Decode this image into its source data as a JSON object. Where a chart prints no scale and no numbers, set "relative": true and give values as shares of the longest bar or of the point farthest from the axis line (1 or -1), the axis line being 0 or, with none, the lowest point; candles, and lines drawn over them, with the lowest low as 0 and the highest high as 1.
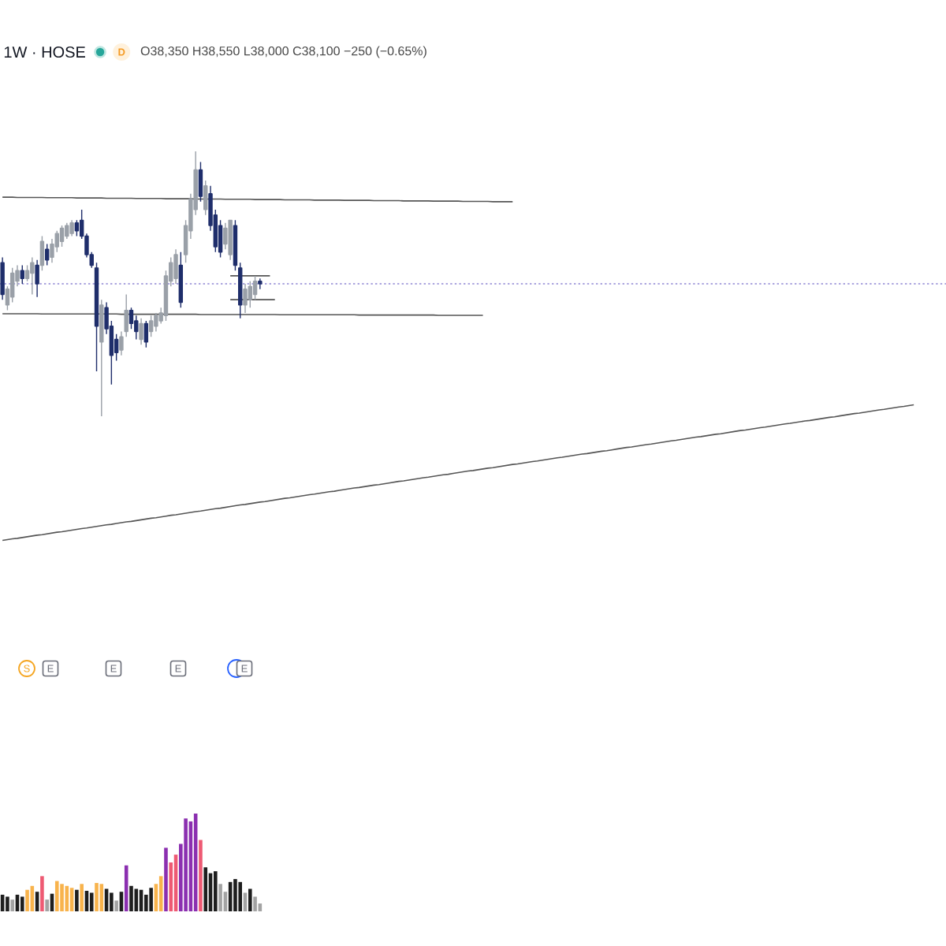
{
  "chart_data": [
    {
      "type": "candlestick",
      "title": "1W · HOSE",
      "relative": true,
      "annotations": [
        "D",
        "O38,350 H38,550 L38,000 C38,100 −250 (−0.65%)",
        "S",
        "E",
        "E",
        "E",
        "E"
      ],
      "categories": [
        null,
        null,
        null,
        null,
        null,
        null,
        null,
        null,
        null,
        null,
        null,
        null,
        null,
        null,
        null,
        null,
        null,
        null,
        null,
        null,
        null,
        null,
        null,
        null,
        null,
        null,
        null,
        null,
        null,
        null,
        null,
        null,
        null,
        null,
        null,
        null,
        null,
        null,
        null,
        null,
        null,
        null,
        null,
        null,
        null,
        null,
        null,
        null,
        null,
        null,
        null,
        null,
        null,
        null,
        null,
        null,
        null,
        null,
        null,
        null,
        null,
        null,
        null,
        null,
        null,
        null,
        null,
        null,
        null,
        null,
        null,
        null,
        null,
        null,
        null,
        null,
        null,
        null,
        null,
        null,
        null,
        null,
        null,
        null,
        null,
        null,
        null,
        null,
        null,
        null,
        null,
        null,
        null,
        null,
        null,
        null,
        null,
        null,
        null,
        null,
        null,
        null,
        null,
        null,
        null,
        null,
        null,
        null,
        null,
        null,
        null,
        null,
        null,
        null,
        null,
        null,
        null,
        null,
        null,
        null,
        null,
        null,
        null,
        null,
        null,
        null,
        null,
        null,
        null,
        null,
        null,
        null,
        null,
        null,
        null,
        null,
        null,
        null,
        null,
        null,
        null,
        null,
        null,
        null,
        null,
        null,
        null,
        null,
        null,
        null,
        null,
        null,
        null,
        null,
        null,
        null,
        null,
        null,
        null,
        null,
        null,
        null,
        null,
        null,
        null,
        null,
        null,
        null,
        null,
        null,
        null,
        null,
        null,
        null,
        null,
        null,
        null,
        null,
        null,
        null,
        null,
        null,
        null,
        null,
        null,
        null,
        null,
        null,
        null,
        null,
        null
      ],
      "ohlc": [
        [
          0.58,
          0.6,
          0.44,
          0.46
        ],
        [
          0.42,
          0.49,
          0.4,
          0.48
        ],
        [
          0.45,
          0.56,
          0.43,
          0.54
        ],
        [
          0.51,
          0.57,
          0.49,
          0.55
        ],
        [
          0.55,
          0.57,
          0.5,
          0.52
        ],
        [
          0.52,
          0.57,
          0.51,
          0.55
        ],
        [
          0.54,
          0.6,
          0.46,
          0.58
        ],
        [
          0.57,
          0.59,
          0.45,
          0.5
        ],
        [
          0.57,
          0.68,
          0.55,
          0.66
        ],
        [
          0.63,
          0.65,
          0.57,
          0.59
        ],
        [
          0.6,
          0.67,
          0.58,
          0.65
        ],
        [
          0.64,
          0.7,
          0.62,
          0.69
        ],
        [
          0.66,
          0.72,
          0.64,
          0.71
        ],
        [
          0.68,
          0.73,
          0.67,
          0.72
        ],
        [
          0.69,
          0.74,
          0.68,
          0.73
        ],
        [
          0.73,
          0.74,
          0.68,
          0.7
        ],
        [
          0.74,
          0.78,
          0.67,
          0.68
        ],
        [
          0.68,
          0.69,
          0.6,
          0.61
        ],
        [
          0.61,
          0.62,
          0.56,
          0.57
        ],
        [
          0.56,
          0.58,
          0.17,
          0.34
        ],
        [
          0.28,
          0.44,
          0,
          0.42
        ],
        [
          0.41,
          0.43,
          0.31,
          0.33
        ],
        [
          0.34,
          0.36,
          0.12,
          0.23
        ],
        [
          0.29,
          0.31,
          0.21,
          0.24
        ],
        [
          0.25,
          0.32,
          0.23,
          0.3
        ],
        [
          0.32,
          0.46,
          0.3,
          0.4
        ],
        [
          0.4,
          0.41,
          0.33,
          0.35
        ],
        [
          0.36,
          0.38,
          0.29,
          0.32
        ],
        [
          0.29,
          0.37,
          0.27,
          0.35
        ],
        [
          0.35,
          0.36,
          0.26,
          0.28
        ],
        [
          0.32,
          0.38,
          0.3,
          0.36
        ],
        [
          0.34,
          0.39,
          0.32,
          0.38
        ],
        [
          0.36,
          0.41,
          0.35,
          0.39
        ],
        [
          0.38,
          0.55,
          0.36,
          0.53
        ],
        [
          0.51,
          0.6,
          0.49,
          0.58
        ],
        [
          0.52,
          0.63,
          0.5,
          0.61
        ],
        [
          0.57,
          0.62,
          0.41,
          0.43
        ],
        [
          0.61,
          0.74,
          0.58,
          0.72
        ],
        [
          0.7,
          0.84,
          0.67,
          0.82
        ],
        [
          0.78,
          1,
          0.76,
          0.93
        ],
        [
          0.93,
          0.96,
          0.81,
          0.83
        ],
        [
          0.78,
          0.89,
          0.76,
          0.87
        ],
        [
          0.84,
          0.87,
          0.7,
          0.72
        ],
        [
          0.76,
          0.78,
          0.62,
          0.64
        ],
        [
          0.72,
          0.74,
          0.6,
          0.62
        ],
        [
          0.65,
          0.73,
          0.63,
          0.71
        ],
        [
          0.61,
          0.74,
          0.59,
          0.74
        ],
        [
          0.72,
          0.74,
          0.55,
          0.57
        ],
        [
          0.56,
          0.58,
          0.37,
          0.42
        ],
        [
          0.42,
          0.5,
          0.39,
          0.48
        ],
        [
          0.44,
          0.51,
          0.41,
          0.49
        ],
        [
          0.46,
          0.53,
          0.44,
          0.51
        ],
        [
          0.51,
          0.52,
          0.48,
          0.5
        ],
        null,
        null,
        null,
        null,
        null,
        null,
        null,
        null,
        null,
        null,
        null,
        null,
        null,
        null,
        null,
        null,
        null,
        null,
        null,
        null,
        null,
        null,
        null,
        null,
        null,
        null,
        null,
        null,
        null,
        null,
        null,
        null,
        null,
        null,
        null,
        null,
        null,
        null,
        null,
        null,
        null,
        null,
        null,
        null,
        null,
        null,
        null,
        null,
        null,
        null,
        null,
        null,
        null,
        null,
        null,
        null,
        null,
        null,
        null,
        null,
        null,
        null,
        null,
        null,
        null,
        null,
        null,
        null,
        null,
        null,
        null,
        null,
        null,
        null,
        null,
        null,
        null,
        null,
        null,
        null,
        null,
        null,
        null,
        null,
        null,
        null,
        null,
        null,
        null,
        null,
        null,
        null,
        null,
        null,
        null,
        null,
        null,
        null,
        null,
        null,
        null,
        null,
        null,
        null,
        null,
        null,
        null,
        null,
        null,
        null,
        null,
        null,
        null,
        null,
        null,
        null,
        null,
        null,
        null,
        null,
        null,
        null,
        null,
        null,
        null,
        null,
        null,
        null,
        null,
        null,
        null,
        null,
        null,
        null,
        null,
        null,
        null,
        null
      ],
      "colors": [
        "#1f2e6b",
        "#9aa0a8",
        "#9aa0a8",
        "#9aa0a8",
        "#1f2e6b",
        "#9aa0a8",
        "#9aa0a8",
        "#1f2e6b",
        "#9aa0a8",
        "#1f2e6b",
        "#9aa0a8",
        "#9aa0a8",
        "#9aa0a8",
        "#9aa0a8",
        "#9aa0a8",
        "#1f2e6b",
        "#1f2e6b",
        "#1f2e6b",
        "#1f2e6b",
        "#1f2e6b",
        "#9aa0a8",
        "#1f2e6b",
        "#1f2e6b",
        "#1f2e6b",
        "#9aa0a8",
        "#9aa0a8",
        "#1f2e6b",
        "#1f2e6b",
        "#9aa0a8",
        "#1f2e6b",
        "#9aa0a8",
        "#9aa0a8",
        "#9aa0a8",
        "#9aa0a8",
        "#9aa0a8",
        "#9aa0a8",
        "#1f2e6b",
        "#9aa0a8",
        "#9aa0a8",
        "#9aa0a8",
        "#1f2e6b",
        "#9aa0a8",
        "#1f2e6b",
        "#1f2e6b",
        "#1f2e6b",
        "#9aa0a8",
        "#9aa0a8",
        "#1f2e6b",
        "#1f2e6b",
        "#9aa0a8",
        "#9aa0a8",
        "#9aa0a8",
        "#1f2e6b",
        null,
        null,
        null,
        null,
        null,
        null,
        null,
        null,
        null,
        null,
        null,
        null,
        null,
        null,
        null,
        null,
        null,
        null,
        null,
        null,
        null,
        null,
        null,
        null,
        null,
        null,
        null,
        null,
        null,
        null,
        null,
        null,
        null,
        null,
        null,
        null,
        null,
        null,
        null,
        null,
        null,
        null,
        null,
        null,
        null,
        null,
        null,
        null,
        null,
        null,
        null,
        null,
        null,
        null,
        null,
        null,
        null,
        null,
        null,
        null,
        null,
        null,
        null,
        null,
        null,
        null,
        null,
        null,
        null,
        null,
        null,
        null,
        null,
        null,
        null,
        null,
        null,
        null,
        null,
        null,
        null,
        null,
        null,
        null,
        null,
        null,
        null,
        null,
        null,
        null,
        null,
        null,
        null,
        null,
        null,
        null,
        null,
        null,
        null,
        null,
        null,
        null,
        null,
        null,
        null,
        null,
        null,
        null,
        null,
        null,
        null,
        null,
        null,
        null,
        null,
        null,
        null,
        null,
        null,
        null,
        null,
        null,
        null,
        null,
        null,
        null,
        null,
        null,
        null,
        null,
        null,
        null,
        null,
        null,
        null,
        null,
        null,
        null
      ],
      "series": [
        {
          "type": "line",
          "color": "#555555",
          "values": [
            0.827,
            0.827,
            0.827,
            0.826,
            0.826,
            0.826,
            0.826,
            0.826,
            0.826,
            0.825,
            0.825,
            0.825,
            0.825,
            0.825,
            0.825,
            0.824,
            0.824,
            0.824,
            0.824,
            0.824,
            0.824,
            0.823,
            0.823,
            0.823,
            0.823,
            0.823,
            0.823,
            0.822,
            0.822,
            0.822,
            0.822,
            0.822,
            0.822,
            0.821,
            0.821,
            0.821,
            0.821,
            0.821,
            0.821,
            0.82,
            0.82,
            0.82,
            0.82,
            0.82,
            0.82,
            0.819,
            0.819,
            0.819,
            0.819,
            0.819,
            0.819,
            0.818,
            0.818,
            0.818,
            0.818,
            0.818,
            0.818,
            0.817,
            0.817,
            0.817,
            0.817,
            0.817,
            0.817,
            0.816,
            0.816,
            0.816,
            0.816,
            0.816,
            0.816,
            0.815,
            0.815,
            0.815,
            0.815,
            0.815,
            0.815,
            0.814,
            0.814,
            0.814,
            0.814,
            0.814,
            0.814,
            0.813,
            0.813,
            0.813,
            0.813,
            0.813,
            0.813,
            0.812,
            0.812,
            0.812,
            0.812,
            0.812,
            0.812,
            0.811,
            0.811,
            0.811,
            0.811,
            0.811,
            0.811,
            0.81,
            0.81,
            0.81,
            0.81,
            0.81,
            null,
            null,
            null,
            null,
            null,
            null,
            null,
            null,
            null,
            null,
            null,
            null,
            null,
            null,
            null,
            null,
            null,
            null,
            null,
            null,
            null,
            null,
            null,
            null,
            null,
            null,
            null,
            null,
            null,
            null,
            null,
            null,
            null,
            null,
            null,
            null,
            null,
            null,
            null,
            null,
            null,
            null,
            null,
            null,
            null,
            null,
            null,
            null,
            null,
            null,
            null,
            null,
            null,
            null,
            null,
            null,
            null,
            null,
            null,
            null,
            null,
            null,
            null,
            null,
            null,
            null,
            null,
            null,
            null,
            null,
            null,
            null,
            null,
            null,
            null,
            null,
            null,
            null,
            null,
            null,
            null,
            null,
            null,
            null,
            null,
            null,
            null
          ]
        },
        {
          "type": "line",
          "color": "#555555",
          "values": [
            0.387,
            0.387,
            0.387,
            0.387,
            0.387,
            0.387,
            0.387,
            0.387,
            0.386,
            0.386,
            0.386,
            0.386,
            0.386,
            0.386,
            0.386,
            0.386,
            0.386,
            0.386,
            0.386,
            0.386,
            0.386,
            0.386,
            0.386,
            0.386,
            0.385,
            0.385,
            0.385,
            0.385,
            0.385,
            0.385,
            0.385,
            0.385,
            0.385,
            0.385,
            0.385,
            0.385,
            0.385,
            0.385,
            0.385,
            0.385,
            0.384,
            0.384,
            0.384,
            0.384,
            0.384,
            0.384,
            0.384,
            0.384,
            0.384,
            0.384,
            0.384,
            0.384,
            0.384,
            0.384,
            0.384,
            0.384,
            0.383,
            0.383,
            0.383,
            0.383,
            0.383,
            0.383,
            0.383,
            0.383,
            0.383,
            0.383,
            0.383,
            0.383,
            0.383,
            0.383,
            0.383,
            0.383,
            0.382,
            0.382,
            0.382,
            0.382,
            0.382,
            0.382,
            0.382,
            0.382,
            0.382,
            0.382,
            0.382,
            0.382,
            0.382,
            0.382,
            0.382,
            0.382,
            0.381,
            0.381,
            0.381,
            0.381,
            0.381,
            0.381,
            0.381,
            0.381,
            0.381,
            0.381,
            null,
            null,
            null,
            null,
            null,
            null,
            null,
            null,
            null,
            null,
            null,
            null,
            null,
            null,
            null,
            null,
            null,
            null,
            null,
            null,
            null,
            null,
            null,
            null,
            null,
            null,
            null,
            null,
            null,
            null,
            null,
            null,
            null,
            null,
            null,
            null,
            null,
            null,
            null,
            null,
            null,
            null,
            null,
            null,
            null,
            null,
            null,
            null,
            null,
            null,
            null,
            null,
            null,
            null,
            null,
            null,
            null,
            null,
            null,
            null,
            null,
            null,
            null,
            null,
            null,
            null,
            null,
            null,
            null,
            null,
            null,
            null,
            null,
            null,
            null,
            null,
            null,
            null,
            null,
            null,
            null,
            null,
            null,
            null,
            null,
            null,
            null,
            null,
            null,
            null,
            null,
            null,
            null
          ]
        },
        {
          "type": "line",
          "color": "#555555",
          "values": [
            -0.469,
            -0.466,
            -0.463,
            -0.461,
            -0.458,
            -0.455,
            -0.452,
            -0.449,
            -0.447,
            -0.444,
            -0.441,
            -0.438,
            -0.436,
            -0.433,
            -0.43,
            -0.427,
            -0.424,
            -0.422,
            -0.419,
            -0.416,
            -0.413,
            -0.41,
            -0.408,
            -0.405,
            -0.402,
            -0.399,
            -0.397,
            -0.394,
            -0.391,
            -0.388,
            -0.385,
            -0.383,
            -0.38,
            -0.377,
            -0.374,
            -0.372,
            -0.369,
            -0.366,
            -0.363,
            -0.36,
            -0.358,
            -0.355,
            -0.352,
            -0.349,
            -0.347,
            -0.344,
            -0.341,
            -0.338,
            -0.335,
            -0.333,
            -0.33,
            -0.327,
            -0.324,
            -0.322,
            -0.319,
            -0.316,
            -0.313,
            -0.31,
            -0.308,
            -0.305,
            -0.302,
            -0.299,
            -0.296,
            -0.294,
            -0.291,
            -0.288,
            -0.285,
            -0.283,
            -0.28,
            -0.277,
            -0.274,
            -0.271,
            -0.269,
            -0.266,
            -0.263,
            -0.26,
            -0.258,
            -0.255,
            -0.252,
            -0.249,
            -0.246,
            -0.244,
            -0.241,
            -0.238,
            -0.235,
            -0.232,
            -0.23,
            -0.227,
            -0.224,
            -0.221,
            -0.219,
            -0.216,
            -0.213,
            -0.21,
            -0.207,
            -0.205,
            -0.202,
            -0.199,
            -0.196,
            -0.194,
            -0.191,
            -0.188,
            -0.185,
            -0.182,
            -0.18,
            -0.177,
            -0.174,
            -0.171,
            -0.169,
            -0.166,
            -0.163,
            -0.16,
            -0.157,
            -0.155,
            -0.152,
            -0.149,
            -0.146,
            -0.143,
            -0.141,
            -0.138,
            -0.135,
            -0.132,
            -0.13,
            -0.127,
            -0.124,
            -0.121,
            -0.118,
            -0.116,
            -0.113,
            -0.11,
            -0.107,
            -0.105,
            -0.102,
            -0.099,
            -0.096,
            -0.093,
            -0.091,
            -0.088,
            -0.085,
            -0.082,
            -0.079,
            -0.077,
            -0.074,
            -0.071,
            -0.068,
            -0.066,
            -0.063,
            -0.06,
            -0.057,
            -0.054,
            -0.052,
            -0.049,
            -0.046,
            -0.043,
            -0.041,
            -0.038,
            -0.035,
            -0.032,
            -0.029,
            -0.027,
            -0.024,
            -0.021,
            -0.018,
            -0.016,
            -0.013,
            -0.01,
            -0.007,
            -0.004,
            -0.002,
            0.001,
            0.004,
            0.007,
            0.01,
            0.012,
            0.015,
            0.018,
            0.021,
            0.024,
            0.026,
            0.029,
            0.032,
            0.035,
            0.037,
            0.04,
            0.043,
            null,
            null,
            null,
            null,
            null,
            null
          ]
        },
        {
          "type": "line",
          "color": "#555555",
          "values": [
            null,
            null,
            null,
            null,
            null,
            null,
            null,
            null,
            null,
            null,
            null,
            null,
            null,
            null,
            null,
            null,
            null,
            null,
            null,
            null,
            null,
            null,
            null,
            null,
            null,
            null,
            null,
            null,
            null,
            null,
            null,
            null,
            null,
            null,
            null,
            null,
            null,
            null,
            null,
            null,
            null,
            null,
            null,
            null,
            null,
            null,
            0.53,
            0.53,
            0.53,
            0.53,
            0.53,
            0.53,
            0.53,
            0.53,
            0.53,
            null,
            null,
            null,
            null,
            null,
            null,
            null,
            null,
            null,
            null,
            null,
            null,
            null,
            null,
            null,
            null,
            null,
            null,
            null,
            null,
            null,
            null,
            null,
            null,
            null,
            null,
            null,
            null,
            null,
            null,
            null,
            null,
            null,
            null,
            null,
            null,
            null,
            null,
            null,
            null,
            null,
            null,
            null,
            null,
            null,
            null,
            null,
            null,
            null,
            null,
            null,
            null,
            null,
            null,
            null,
            null,
            null,
            null,
            null,
            null,
            null,
            null,
            null,
            null,
            null,
            null,
            null,
            null,
            null,
            null,
            null,
            null,
            null,
            null,
            null,
            null,
            null,
            null,
            null,
            null,
            null,
            null,
            null,
            null,
            null,
            null,
            null,
            null,
            null,
            null,
            null,
            null,
            null,
            null,
            null,
            null,
            null,
            null,
            null,
            null,
            null,
            null,
            null,
            null,
            null,
            null,
            null,
            null,
            null,
            null,
            null,
            null,
            null,
            null,
            null,
            null,
            null,
            null,
            null,
            null,
            null,
            null,
            null,
            null,
            null,
            null,
            null,
            null,
            null,
            null,
            null,
            null,
            null,
            null,
            null,
            null
          ]
        },
        {
          "type": "line",
          "color": "#555555",
          "values": [
            null,
            null,
            null,
            null,
            null,
            null,
            null,
            null,
            null,
            null,
            null,
            null,
            null,
            null,
            null,
            null,
            null,
            null,
            null,
            null,
            null,
            null,
            null,
            null,
            null,
            null,
            null,
            null,
            null,
            null,
            null,
            null,
            null,
            null,
            null,
            null,
            null,
            null,
            null,
            null,
            null,
            null,
            null,
            null,
            null,
            null,
            0.44,
            0.44,
            0.44,
            0.44,
            0.44,
            0.44,
            0.44,
            0.44,
            0.44,
            0.44,
            null,
            null,
            null,
            null,
            null,
            null,
            null,
            null,
            null,
            null,
            null,
            null,
            null,
            null,
            null,
            null,
            null,
            null,
            null,
            null,
            null,
            null,
            null,
            null,
            null,
            null,
            null,
            null,
            null,
            null,
            null,
            null,
            null,
            null,
            null,
            null,
            null,
            null,
            null,
            null,
            null,
            null,
            null,
            null,
            null,
            null,
            null,
            null,
            null,
            null,
            null,
            null,
            null,
            null,
            null,
            null,
            null,
            null,
            null,
            null,
            null,
            null,
            null,
            null,
            null,
            null,
            null,
            null,
            null,
            null,
            null,
            null,
            null,
            null,
            null,
            null,
            null,
            null,
            null,
            null,
            null,
            null,
            null,
            null,
            null,
            null,
            null,
            null,
            null,
            null,
            null,
            null,
            null,
            null,
            null,
            null,
            null,
            null,
            null,
            null,
            null,
            null,
            null,
            null,
            null,
            null,
            null,
            null,
            null,
            null,
            null,
            null,
            null,
            null,
            null,
            null,
            null,
            null,
            null,
            null,
            null,
            null,
            null,
            null,
            null,
            null,
            null,
            null,
            null,
            null,
            null,
            null,
            null,
            null,
            null
          ]
        }
      ],
      "ref_lines": [
        {
          "axis": "y",
          "value": 0.5,
          "color": "#8f86d4",
          "line_style": "dotted"
        }
      ]
    },
    {
      "type": "bar",
      "relative": true,
      "categories": [
        null,
        null,
        null,
        null,
        null,
        null,
        null,
        null,
        null,
        null,
        null,
        null,
        null,
        null,
        null,
        null,
        null,
        null,
        null,
        null,
        null,
        null,
        null,
        null,
        null,
        null,
        null,
        null,
        null,
        null,
        null,
        null,
        null,
        null,
        null,
        null,
        null,
        null,
        null,
        null,
        null,
        null,
        null,
        null,
        null,
        null,
        null,
        null,
        null,
        null,
        null,
        null,
        null,
        null,
        null,
        null,
        null,
        null,
        null,
        null,
        null,
        null,
        null,
        null,
        null,
        null,
        null,
        null,
        null,
        null,
        null,
        null,
        null,
        null,
        null,
        null,
        null,
        null,
        null,
        null,
        null,
        null,
        null,
        null,
        null,
        null,
        null,
        null,
        null,
        null,
        null,
        null,
        null,
        null,
        null,
        null,
        null,
        null,
        null,
        null,
        null,
        null,
        null,
        null,
        null,
        null,
        null,
        null,
        null,
        null,
        null,
        null,
        null,
        null,
        null,
        null,
        null,
        null,
        null,
        null,
        null,
        null,
        null,
        null,
        null,
        null,
        null,
        null,
        null,
        null,
        null,
        null,
        null,
        null,
        null,
        null,
        null,
        null,
        null,
        null,
        null,
        null,
        null,
        null,
        null,
        null,
        null,
        null,
        null,
        null,
        null,
        null,
        null,
        null,
        null,
        null,
        null,
        null,
        null,
        null,
        null,
        null,
        null,
        null,
        null,
        null,
        null,
        null,
        null,
        null,
        null,
        null,
        null,
        null,
        null,
        null,
        null,
        null,
        null,
        null,
        null,
        null,
        null,
        null,
        null,
        null,
        null,
        null,
        null,
        null,
        null
      ],
      "values": [
        0.17,
        0.15,
        0.12,
        0.17,
        0.15,
        0.22,
        0.26,
        0.2,
        0.36,
        0.12,
        0.18,
        0.31,
        0.28,
        0.26,
        0.24,
        0.22,
        0.28,
        0.21,
        0.19,
        0.29,
        0.28,
        0.23,
        0.19,
        0.11,
        0.2,
        0.47,
        0.26,
        0.23,
        0.22,
        0.17,
        0.24,
        0.28,
        0.36,
        0.65,
        0.5,
        0.58,
        0.69,
        0.95,
        0.92,
        1,
        0.73,
        0.45,
        0.39,
        0.41,
        0.28,
        0.2,
        0.3,
        0.33,
        0.3,
        0.19,
        0.23,
        0.15,
        0.08,
        null,
        null,
        null,
        null,
        null,
        null,
        null,
        null,
        null,
        null,
        null,
        null,
        null,
        null,
        null,
        null,
        null,
        null,
        null,
        null,
        null,
        null,
        null,
        null,
        null,
        null,
        null,
        null,
        null,
        null,
        null,
        null,
        null,
        null,
        null,
        null,
        null,
        null,
        null,
        null,
        null,
        null,
        null,
        null,
        null,
        null,
        null,
        null,
        null,
        null,
        null,
        null,
        null,
        null,
        null,
        null,
        null,
        null,
        null,
        null,
        null,
        null,
        null,
        null,
        null,
        null,
        null,
        null,
        null,
        null,
        null,
        null,
        null,
        null,
        null,
        null,
        null,
        null,
        null,
        null,
        null,
        null,
        null,
        null,
        null,
        null,
        null,
        null,
        null,
        null,
        null,
        null,
        null,
        null,
        null,
        null,
        null,
        null,
        null,
        null,
        null,
        null,
        null,
        null,
        null,
        null,
        null,
        null,
        null,
        null,
        null,
        null,
        null,
        null,
        null,
        null,
        null,
        null,
        null,
        null,
        null,
        null,
        null,
        null,
        null,
        null,
        null,
        null,
        null,
        null,
        null,
        null,
        null,
        null,
        null,
        null,
        null,
        null
      ],
      "colors": [
        "#1e1e1e",
        "#1e1e1e",
        "#a3a3a3",
        "#1e1e1e",
        "#1e1e1e",
        "#f8b34c",
        "#f8b34c",
        "#1e1e1e",
        "#ee5a73",
        "#a3a3a3",
        "#1e1e1e",
        "#f8b34c",
        "#f8b34c",
        "#f8b34c",
        "#f8b34c",
        "#1e1e1e",
        "#f8b34c",
        "#1e1e1e",
        "#1e1e1e",
        "#f8b34c",
        "#f8b34c",
        "#1e1e1e",
        "#1e1e1e",
        "#a3a3a3",
        "#1e1e1e",
        "#8b2fb0",
        "#1e1e1e",
        "#1e1e1e",
        "#1e1e1e",
        "#1e1e1e",
        "#1e1e1e",
        "#f8b34c",
        "#f8b34c",
        "#8b2fb0",
        "#ee5a73",
        "#ee5a73",
        "#8b2fb0",
        "#8b2fb0",
        "#8b2fb0",
        "#8b2fb0",
        "#ee5a73",
        "#1e1e1e",
        "#1e1e1e",
        "#1e1e1e",
        "#a3a3a3",
        "#a3a3a3",
        "#1e1e1e",
        "#1e1e1e",
        "#1e1e1e",
        "#a3a3a3",
        "#1e1e1e",
        "#a3a3a3",
        "#a3a3a3",
        null,
        null,
        null,
        null,
        null,
        null,
        null,
        null,
        null,
        null,
        null,
        null,
        null,
        null,
        null,
        null,
        null,
        null,
        null,
        null,
        null,
        null,
        null,
        null,
        null,
        null,
        null,
        null,
        null,
        null,
        null,
        null,
        null,
        null,
        null,
        null,
        null,
        null,
        null,
        null,
        null,
        null,
        null,
        null,
        null,
        null,
        null,
        null,
        null,
        null,
        null,
        null,
        null,
        null,
        null,
        null,
        null,
        null,
        null,
        null,
        null,
        null,
        null,
        null,
        null,
        null,
        null,
        null,
        null,
        null,
        null,
        null,
        null,
        null,
        null,
        null,
        null,
        null,
        null,
        null,
        null,
        null,
        null,
        null,
        null,
        null,
        null,
        null,
        null,
        null,
        null,
        null,
        null,
        null,
        null,
        null,
        null,
        null,
        null,
        null,
        null,
        null,
        null,
        null,
        null,
        null,
        null,
        null,
        null,
        null,
        null,
        null,
        null,
        null,
        null,
        null,
        null,
        null,
        null,
        null,
        null,
        null,
        null,
        null,
        null,
        null,
        null,
        null,
        null,
        null,
        null,
        null,
        null,
        null,
        null,
        null,
        null,
        null
      ]
    }
  ]
}
